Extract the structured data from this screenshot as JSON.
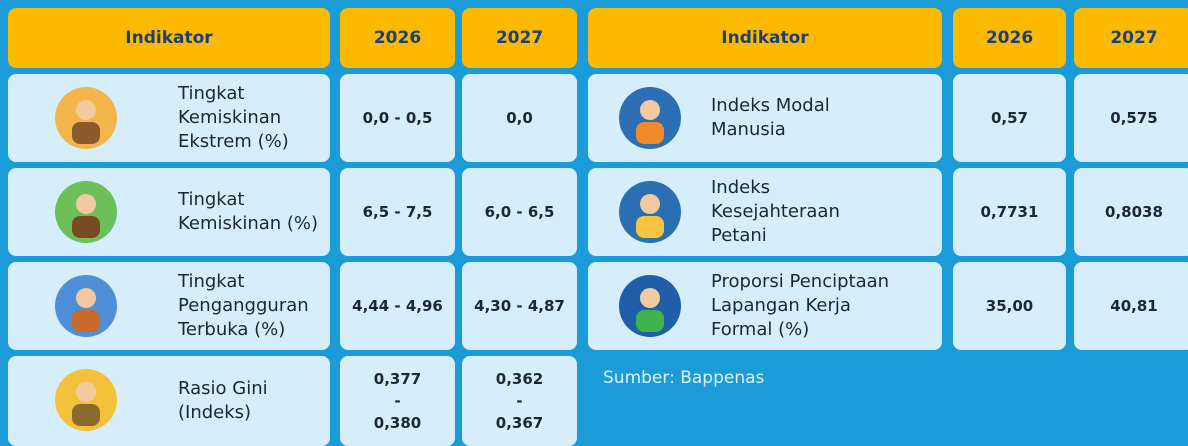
{
  "left_table": {
    "headers": [
      "Indikator",
      "2026",
      "2027"
    ],
    "rows": [
      {
        "indicator": [
          "Tingkat",
          "Kemiskinan",
          "Ekstrem (%)"
        ],
        "values": [
          [
            "0,0 - 0,5"
          ],
          [
            "0,0"
          ]
        ]
      },
      {
        "indicator": [
          "Tingkat",
          "Kemiskinan (%)"
        ],
        "values": [
          [
            "6,5 - 7,5"
          ],
          [
            "6,0 - 6,5"
          ]
        ]
      },
      {
        "indicator": [
          "Tingkat",
          "Pengangguran",
          "Terbuka (%)"
        ],
        "values": [
          [
            "4,44 - 4,96"
          ],
          [
            "4,30 - 4,87"
          ]
        ]
      },
      {
        "indicator": [
          "Rasio Gini",
          "(Indeks)"
        ],
        "values": [
          [
            "0,377",
            "-",
            "0,380"
          ],
          [
            "0,362",
            "-",
            "0,367"
          ]
        ]
      }
    ]
  },
  "right_table": {
    "headers": [
      "Indikator",
      "2026",
      "2027"
    ],
    "rows": [
      {
        "indicator": [
          "Indeks Modal",
          "Manusia"
        ],
        "values": [
          [
            "0,57"
          ],
          [
            "0,575"
          ]
        ]
      },
      {
        "indicator": [
          "Indeks",
          "Kesejahteraan",
          "Petani"
        ],
        "values": [
          [
            "0,7731"
          ],
          [
            "0,8038"
          ]
        ]
      },
      {
        "indicator": [
          "Proporsi Penciptaan",
          "Lapangan Kerja",
          "Formal (%)"
        ],
        "values": [
          [
            "35,00"
          ],
          [
            "40,81"
          ]
        ]
      }
    ]
  },
  "source": "Sumber: Bappenas"
}
